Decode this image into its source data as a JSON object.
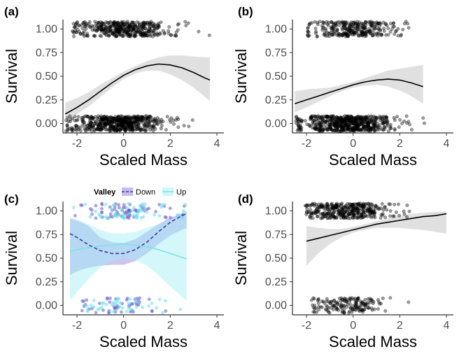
{
  "chart_data": [
    {
      "panel": "(a)",
      "type": "scatter",
      "xlabel": "Scaled Mass",
      "ylabel": "Survival",
      "xlim": [
        -2.6,
        4.3
      ],
      "ylim": [
        -0.1,
        1.1
      ],
      "xticks": [
        -2,
        0,
        2,
        4
      ],
      "yticks": [
        0.0,
        0.25,
        0.5,
        0.75,
        1.0
      ],
      "ytick_labels": [
        "0.00",
        "0.25",
        "0.50",
        "0.75",
        "1.00"
      ],
      "points_color": "#000000",
      "point_groups": [
        {
          "y": 1.0,
          "xmin": -2.2,
          "xmax": 3.7,
          "n": 420,
          "center": 0.0,
          "spread": 1.0
        },
        {
          "y": 0.0,
          "xmin": -2.5,
          "xmax": 3.3,
          "n": 560,
          "center": -0.2,
          "spread": 1.0
        }
      ],
      "series": [
        {
          "x": [
            -2.5,
            -2.0,
            -1.5,
            -1.0,
            -0.5,
            0.0,
            0.5,
            1.0,
            1.5,
            2.0,
            2.5,
            3.0,
            3.5,
            3.7
          ],
          "y": [
            0.1,
            0.17,
            0.25,
            0.34,
            0.43,
            0.51,
            0.57,
            0.61,
            0.63,
            0.62,
            0.59,
            0.54,
            0.48,
            0.46
          ],
          "lower": [
            0.04,
            0.1,
            0.18,
            0.28,
            0.38,
            0.47,
            0.53,
            0.56,
            0.56,
            0.52,
            0.46,
            0.38,
            0.28,
            0.24
          ],
          "upper": [
            0.22,
            0.27,
            0.33,
            0.41,
            0.48,
            0.55,
            0.61,
            0.66,
            0.7,
            0.72,
            0.72,
            0.71,
            0.7,
            0.7
          ],
          "line_color": "#000000",
          "band_color": "#cccccc",
          "dash": "solid"
        }
      ]
    },
    {
      "panel": "(b)",
      "type": "scatter",
      "xlabel": "Scaled Mass",
      "ylabel": "Survival",
      "xlim": [
        -2.6,
        4.3
      ],
      "ylim": [
        -0.1,
        1.1
      ],
      "xticks": [
        -2,
        0,
        2,
        4
      ],
      "yticks": [
        0.0,
        0.25,
        0.5,
        0.75,
        1.0
      ],
      "ytick_labels": [
        "0.00",
        "0.25",
        "0.50",
        "0.75",
        "1.00"
      ],
      "points_color": "#000000",
      "point_groups": [
        {
          "y": 1.0,
          "xmin": -2.0,
          "xmax": 3.1,
          "n": 300,
          "center": 0.0,
          "spread": 1.0
        },
        {
          "y": 0.0,
          "xmin": -2.5,
          "xmax": 3.2,
          "n": 620,
          "center": -0.2,
          "spread": 1.0
        }
      ],
      "series": [
        {
          "x": [
            -2.5,
            -2.0,
            -1.5,
            -1.0,
            -0.5,
            0.0,
            0.5,
            1.0,
            1.5,
            2.0,
            2.5,
            3.0
          ],
          "y": [
            0.21,
            0.25,
            0.29,
            0.33,
            0.37,
            0.41,
            0.44,
            0.46,
            0.47,
            0.46,
            0.43,
            0.39
          ],
          "lower": [
            0.12,
            0.17,
            0.23,
            0.29,
            0.34,
            0.38,
            0.4,
            0.41,
            0.39,
            0.35,
            0.29,
            0.21
          ],
          "upper": [
            0.34,
            0.36,
            0.37,
            0.38,
            0.41,
            0.44,
            0.48,
            0.52,
            0.56,
            0.58,
            0.6,
            0.62
          ],
          "line_color": "#000000",
          "band_color": "#cccccc",
          "dash": "solid"
        }
      ]
    },
    {
      "panel": "(c)",
      "type": "scatter",
      "xlabel": "Scaled Mass",
      "ylabel": "Survival",
      "xlim": [
        -2.6,
        4.3
      ],
      "ylim": [
        -0.1,
        1.1
      ],
      "xticks": [
        -2,
        0,
        2,
        4
      ],
      "yticks": [
        0.0,
        0.25,
        0.5,
        0.75,
        1.0
      ],
      "ytick_labels": [
        "0.00",
        "0.25",
        "0.50",
        "0.75",
        "1.00"
      ],
      "legend": {
        "title": "Valley",
        "position": "top"
      },
      "point_groups": [
        {
          "y": 1.0,
          "xmin": -2.2,
          "xmax": 2.7,
          "n": 70,
          "center": 0.0,
          "spread": 1.2,
          "color": "#6a5acd"
        },
        {
          "y": 1.0,
          "xmin": -2.2,
          "xmax": 2.7,
          "n": 60,
          "center": 0.0,
          "spread": 1.2,
          "color": "#66e0e8"
        },
        {
          "y": 0.0,
          "xmin": -1.8,
          "xmax": 2.6,
          "n": 50,
          "center": -0.2,
          "spread": 1.0,
          "color": "#6a5acd"
        },
        {
          "y": 0.0,
          "xmin": -1.8,
          "xmax": 2.6,
          "n": 45,
          "center": -0.2,
          "spread": 1.0,
          "color": "#66e0e8"
        }
      ],
      "series": [
        {
          "name": "Down",
          "x": [
            -2.3,
            -2.0,
            -1.5,
            -1.0,
            -0.5,
            0.0,
            0.5,
            1.0,
            1.5,
            2.0,
            2.5,
            2.7
          ],
          "y": [
            0.76,
            0.72,
            0.64,
            0.58,
            0.55,
            0.55,
            0.59,
            0.67,
            0.78,
            0.88,
            0.95,
            0.97
          ],
          "lower": [
            0.32,
            0.36,
            0.4,
            0.42,
            0.43,
            0.43,
            0.47,
            0.55,
            0.65,
            0.74,
            0.8,
            0.82
          ],
          "upper": [
            0.92,
            0.9,
            0.84,
            0.72,
            0.67,
            0.66,
            0.7,
            0.78,
            0.86,
            0.93,
            0.97,
            0.99
          ],
          "line_color": "#3a3aa8",
          "band_color": "#8a7fe0",
          "dash": "dashed"
        },
        {
          "name": "Up",
          "x": [
            -2.3,
            -2.0,
            -1.5,
            -1.0,
            -0.5,
            0.0,
            0.5,
            1.0,
            1.5,
            2.0,
            2.5,
            2.7
          ],
          "y": [
            0.57,
            0.59,
            0.61,
            0.63,
            0.64,
            0.65,
            0.64,
            0.62,
            0.59,
            0.55,
            0.51,
            0.49
          ],
          "lower": [
            0.05,
            0.14,
            0.28,
            0.4,
            0.47,
            0.5,
            0.48,
            0.42,
            0.32,
            0.2,
            0.09,
            0.05
          ],
          "upper": [
            0.93,
            0.91,
            0.86,
            0.8,
            0.76,
            0.76,
            0.78,
            0.82,
            0.86,
            0.91,
            0.95,
            0.96
          ],
          "line_color": "#7fe0e8",
          "band_color": "#9ff0f4",
          "dash": "solid"
        }
      ]
    },
    {
      "panel": "(d)",
      "type": "scatter",
      "xlabel": "Scaled Mass",
      "ylabel": "Survival",
      "xlim": [
        -2.6,
        4.3
      ],
      "ylim": [
        -0.1,
        1.1
      ],
      "xticks": [
        -2,
        0,
        2,
        4
      ],
      "yticks": [
        0.0,
        0.25,
        0.5,
        0.75,
        1.0
      ],
      "ytick_labels": [
        "0.00",
        "0.25",
        "0.50",
        "0.75",
        "1.00"
      ],
      "points_color": "#000000",
      "point_groups": [
        {
          "y": 1.0,
          "xmin": -2.1,
          "xmax": 3.7,
          "n": 380,
          "center": -0.2,
          "spread": 1.0
        },
        {
          "y": 0.0,
          "xmin": -1.8,
          "xmax": 3.3,
          "n": 170,
          "center": -0.3,
          "spread": 0.9
        }
      ],
      "series": [
        {
          "x": [
            -2.0,
            -1.5,
            -1.0,
            -0.5,
            0.0,
            0.5,
            1.0,
            1.5,
            2.0,
            2.5,
            3.0,
            3.5,
            4.0
          ],
          "y": [
            0.68,
            0.71,
            0.74,
            0.77,
            0.8,
            0.83,
            0.86,
            0.88,
            0.9,
            0.92,
            0.94,
            0.95,
            0.97
          ],
          "lower": [
            0.42,
            0.55,
            0.65,
            0.72,
            0.77,
            0.8,
            0.82,
            0.82,
            0.82,
            0.81,
            0.8,
            0.78,
            0.76
          ],
          "upper": [
            0.84,
            0.82,
            0.81,
            0.81,
            0.83,
            0.86,
            0.89,
            0.92,
            0.95,
            0.97,
            0.98,
            0.99,
            0.995
          ],
          "line_color": "#000000",
          "band_color": "#cccccc",
          "dash": "solid"
        }
      ]
    }
  ]
}
